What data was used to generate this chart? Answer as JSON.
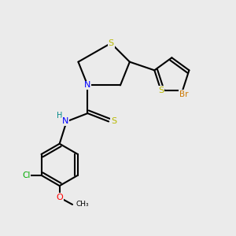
{
  "bg_color": "#ebebeb",
  "atom_colors": {
    "S": "#b8b800",
    "N": "#0000ff",
    "Br": "#cc7700",
    "Cl": "#00aa00",
    "O": "#ff0000",
    "C": "#000000",
    "H": "#008888"
  }
}
